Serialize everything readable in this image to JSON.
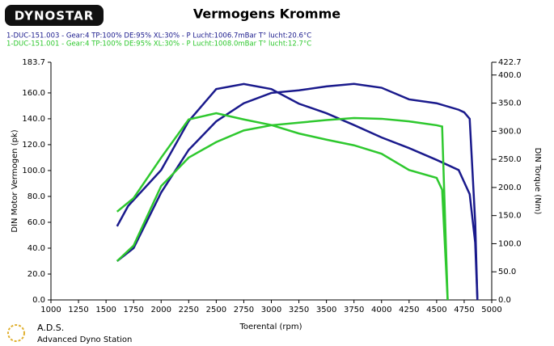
{
  "logo": "DYNOSTAR",
  "footer": {
    "brand": "A.D.S.",
    "subtitle": "Advanced Dyno Station"
  },
  "chart_data": {
    "type": "line",
    "title": "Vermogens Kromme",
    "xlabel": "Toerental (rpm)",
    "ylabel": "DIN Motor Vermogen (pk)",
    "y2label": "DIN Torque (Nm)",
    "xlim": [
      1000,
      5000
    ],
    "xticks": [
      1000,
      1250,
      1500,
      1750,
      2000,
      2250,
      2500,
      2750,
      3000,
      3250,
      3500,
      3750,
      4000,
      4250,
      4500,
      4750,
      5000
    ],
    "ylim": [
      0,
      183.7
    ],
    "yticks": [
      {
        "value": 0,
        "label": "0.0"
      },
      {
        "value": 20,
        "label": "20.0"
      },
      {
        "value": 40,
        "label": "40.0"
      },
      {
        "value": 60,
        "label": "60.0"
      },
      {
        "value": 80,
        "label": "80.0"
      },
      {
        "value": 100,
        "label": "100.0"
      },
      {
        "value": 120,
        "label": "120.0"
      },
      {
        "value": 140,
        "label": "140.0"
      },
      {
        "value": 160,
        "label": "160.0"
      },
      183.7
    ],
    "y2lim": [
      0,
      422.7
    ],
    "y2ticks": [
      {
        "value": 0,
        "label": "0.0"
      },
      {
        "value": 50,
        "label": "50.0"
      },
      {
        "value": 100,
        "label": "100.0"
      },
      {
        "value": 150,
        "label": "150.0"
      },
      {
        "value": 200,
        "label": "200.0"
      },
      {
        "value": 250,
        "label": "250.0"
      },
      {
        "value": 300,
        "label": "300.0"
      },
      {
        "value": 350,
        "label": "350.0"
      },
      {
        "value": 400,
        "label": "400.0"
      },
      422.7
    ],
    "series": [
      {
        "name": "1-DUC-151.003 - Gear:4 TP:100% DE:95% XL:30%   - P Lucht:1006.7mBar T° lucht:20.6°C",
        "color": "#1a1a8c",
        "x": [
          1600,
          1750,
          2000,
          2250,
          2500,
          2750,
          3000,
          3250,
          3500,
          3750,
          4000,
          4250,
          4500,
          4700,
          4750,
          4800,
          4850,
          4870
        ],
        "values": [
          30,
          40,
          83,
          116,
          138,
          152,
          160,
          162,
          165,
          167,
          164,
          155,
          152,
          147,
          145,
          140,
          60,
          0
        ]
      },
      {
        "color": "#1a1a8c",
        "axis": "y2",
        "x": [
          1600,
          1700,
          2000,
          2250,
          2500,
          2750,
          3000,
          3250,
          3500,
          3750,
          4000,
          4250,
          4500,
          4700,
          4800,
          4850,
          4870
        ],
        "values": [
          131,
          167,
          231,
          318,
          375,
          384,
          375,
          349,
          332,
          311,
          289,
          270,
          249,
          231,
          188,
          102,
          0
        ]
      },
      {
        "name": "1-DUC-151.001 - Gear:4 TP:100% DE:95% XL:30%   - P Lucht:1008.0mBar T° lucht:12.7°C",
        "color": "#2ec82e",
        "x": [
          1600,
          1750,
          2000,
          2250,
          2500,
          2750,
          3000,
          3250,
          3500,
          3750,
          4000,
          4250,
          4500,
          4550,
          4600
        ],
        "values": [
          30,
          42,
          88,
          110,
          122,
          131,
          135,
          137,
          139,
          140.6,
          140,
          138,
          135,
          134,
          0
        ]
      },
      {
        "color": "#2ec82e",
        "axis": "y2",
        "x": [
          1600,
          1750,
          2000,
          2250,
          2500,
          2750,
          3000,
          3250,
          3500,
          3750,
          4000,
          4250,
          4500,
          4550,
          4600
        ],
        "values": [
          157,
          181,
          253,
          321,
          332,
          321,
          311,
          296,
          285,
          275,
          260,
          231,
          217,
          196,
          0
        ]
      }
    ]
  }
}
